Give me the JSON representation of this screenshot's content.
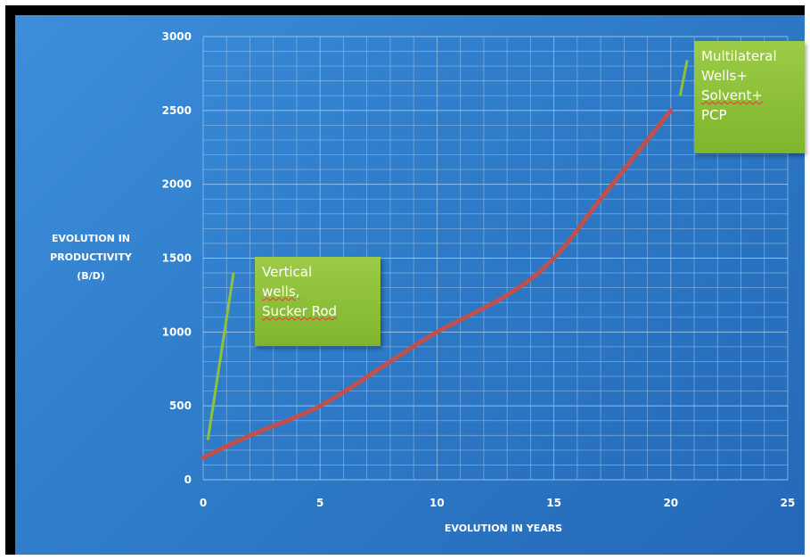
{
  "chart_data": {
    "type": "line",
    "xlabel": "EVOLUTION IN YEARS",
    "ylabel_lines": [
      "EVOLUTION IN",
      "PRODUCTIVITY",
      "(B/D)"
    ],
    "xlim": [
      0,
      25
    ],
    "ylim": [
      0,
      3000
    ],
    "x_ticks": [
      "0",
      "5",
      "10",
      "15",
      "20",
      "25"
    ],
    "y_ticks": [
      "0",
      "500",
      "1000",
      "1500",
      "2000",
      "2500",
      "3000"
    ],
    "grid": true,
    "series": [
      {
        "color": "#c0504d",
        "x": [
          0,
          2,
          5,
          8,
          10,
          13,
          15,
          17,
          19,
          20
        ],
        "y": [
          150,
          300,
          500,
          800,
          1000,
          1250,
          1500,
          1900,
          2300,
          2500
        ]
      }
    ],
    "annotations": [
      {
        "lines": [
          "Vertical",
          "wells,",
          "Sucker Rod"
        ],
        "underlined": [
          false,
          true,
          true
        ],
        "x": 0.2,
        "y": 270,
        "anchor_x": 1.3,
        "anchor_y": 1400
      },
      {
        "lines": [
          "Multilateral",
          "Wells+",
          "Solvent+",
          "PCP"
        ],
        "underlined": [
          false,
          false,
          true,
          false
        ],
        "x": 20.4,
        "y": 2600,
        "anchor_x": 20.7,
        "anchor_y": 2840
      }
    ]
  },
  "colors": {
    "background": "#2f7cc9",
    "grid": "#9cc3ea",
    "line": "#c0504d",
    "callout": "#8fc13c",
    "leader": "#8fc13c"
  }
}
